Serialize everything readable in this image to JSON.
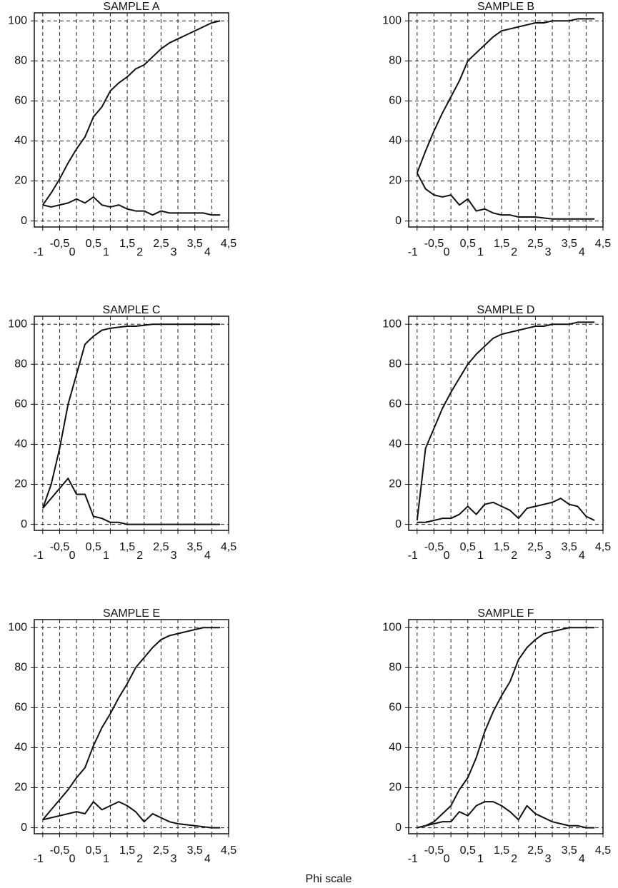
{
  "xlabel": "Phi scale",
  "chart_data": [
    {
      "type": "line",
      "title": "SAMPLE A",
      "x": [
        -1,
        -0.75,
        -0.5,
        -0.25,
        0,
        0.25,
        0.5,
        0.75,
        1,
        1.25,
        1.5,
        1.75,
        2,
        2.25,
        2.5,
        2.75,
        3,
        3.25,
        3.5,
        3.75,
        4,
        4.25
      ],
      "series": [
        {
          "color": "#111",
          "values": [
            8,
            14,
            21,
            29,
            36,
            42,
            52,
            57,
            65,
            69,
            72,
            76,
            78,
            82,
            86,
            89,
            91,
            93,
            95,
            97,
            99,
            100
          ]
        },
        {
          "color": "#111",
          "values": [
            8,
            7,
            8,
            9,
            11,
            9,
            12,
            8,
            7,
            8,
            6,
            5,
            5,
            3,
            5,
            4,
            4,
            4,
            4,
            4,
            3,
            3
          ]
        }
      ],
      "xlim": [
        -1.25,
        4.5
      ],
      "ylim": [
        -3,
        104
      ],
      "xticks": [
        -1,
        {
          "value": -0.5,
          "label": "-0,5"
        },
        0,
        {
          "value": 0.5,
          "label": "0,5"
        },
        1,
        {
          "value": 1.5,
          "label": "1,5"
        },
        2,
        {
          "value": 2.5,
          "label": "2,5"
        },
        3,
        {
          "value": 3.5,
          "label": "3,5"
        },
        4,
        {
          "value": 4.5,
          "label": "4,5"
        }
      ],
      "yticks": [
        0,
        20,
        40,
        60,
        80,
        100
      ],
      "grid": true
    },
    {
      "type": "line",
      "title": "SAMPLE B",
      "x": [
        -1,
        -0.75,
        -0.5,
        -0.25,
        0,
        0.25,
        0.5,
        0.75,
        1,
        1.25,
        1.5,
        1.75,
        2,
        2.25,
        2.5,
        2.75,
        3,
        3.25,
        3.5,
        3.75,
        4,
        4.25
      ],
      "series": [
        {
          "color": "#111",
          "values": [
            24,
            35,
            45,
            54,
            62,
            70,
            80,
            84,
            88,
            92,
            95,
            96,
            97,
            98,
            99,
            99,
            100,
            100,
            100,
            101,
            101,
            101
          ]
        },
        {
          "color": "#111",
          "values": [
            24,
            16,
            13,
            12,
            13,
            8,
            11,
            5,
            6,
            4,
            3,
            3,
            2,
            2,
            2,
            1.5,
            1,
            1,
            1,
            1,
            1,
            1
          ]
        }
      ],
      "xlim": [
        -1.25,
        4.5
      ],
      "ylim": [
        -3,
        104
      ],
      "xticks": [
        -1,
        {
          "value": -0.5,
          "label": "-0,5"
        },
        0,
        {
          "value": 0.5,
          "label": "0,5"
        },
        1,
        {
          "value": 1.5,
          "label": "1,5"
        },
        2,
        {
          "value": 2.5,
          "label": "2,5"
        },
        3,
        {
          "value": 3.5,
          "label": "3,5"
        },
        4,
        {
          "value": 4.5,
          "label": "4,5"
        }
      ],
      "yticks": [
        0,
        20,
        40,
        60,
        80,
        100
      ],
      "grid": true
    },
    {
      "type": "line",
      "title": "SAMPLE C",
      "x": [
        -1,
        -0.75,
        -0.5,
        -0.25,
        0,
        0.25,
        0.5,
        0.75,
        1,
        1.25,
        1.5,
        1.75,
        2,
        2.25,
        2.5,
        2.75,
        3,
        3.25,
        3.5,
        3.75,
        4,
        4.25
      ],
      "series": [
        {
          "color": "#111",
          "values": [
            8,
            20,
            38,
            60,
            75,
            90,
            94,
            97,
            98,
            98.5,
            99,
            99,
            99.5,
            100,
            100,
            100,
            100,
            100,
            100,
            100,
            100,
            100
          ]
        },
        {
          "color": "#111",
          "values": [
            8,
            13,
            18,
            23,
            15,
            15,
            4,
            3,
            1,
            1,
            0,
            0,
            0,
            0,
            0,
            0,
            0,
            0,
            0,
            0,
            0,
            0
          ]
        }
      ],
      "xlim": [
        -1.25,
        4.5
      ],
      "ylim": [
        -3,
        104
      ],
      "xticks": [
        -1,
        {
          "value": -0.5,
          "label": "-0,5"
        },
        0,
        {
          "value": 0.5,
          "label": "0,5"
        },
        1,
        {
          "value": 1.5,
          "label": "1,5"
        },
        2,
        {
          "value": 2.5,
          "label": "2,5"
        },
        3,
        {
          "value": 3.5,
          "label": "3,5"
        },
        4,
        {
          "value": 4.5,
          "label": "4,5"
        }
      ],
      "yticks": [
        0,
        20,
        40,
        60,
        80,
        100
      ],
      "grid": true
    },
    {
      "type": "line",
      "title": "SAMPLE D",
      "x": [
        -1,
        -0.75,
        -0.5,
        -0.25,
        0,
        0.25,
        0.5,
        0.75,
        1,
        1.25,
        1.5,
        1.75,
        2,
        2.25,
        2.5,
        2.75,
        3,
        3.25,
        3.5,
        3.75,
        4,
        4.25
      ],
      "series": [
        {
          "color": "#111",
          "values": [
            2,
            38,
            48,
            58,
            66,
            73,
            80,
            85,
            89,
            93,
            95,
            96,
            97,
            98,
            99,
            99,
            100,
            100,
            100,
            101,
            101,
            101
          ]
        },
        {
          "color": "#111",
          "values": [
            1,
            1,
            2,
            3,
            3,
            5,
            9,
            5,
            10,
            11,
            9,
            7,
            3,
            8,
            9,
            10,
            11,
            13,
            10,
            9,
            4,
            2
          ]
        }
      ],
      "xlim": [
        -1.25,
        4.5
      ],
      "ylim": [
        -3,
        104
      ],
      "xticks": [
        -1,
        {
          "value": -0.5,
          "label": "-0,5"
        },
        0,
        {
          "value": 0.5,
          "label": "0,5"
        },
        1,
        {
          "value": 1.5,
          "label": "1,5"
        },
        2,
        {
          "value": 2.5,
          "label": "2,5"
        },
        3,
        {
          "value": 3.5,
          "label": "3,5"
        },
        4,
        {
          "value": 4.5,
          "label": "4,5"
        }
      ],
      "yticks": [
        0,
        20,
        40,
        60,
        80,
        100
      ],
      "grid": true
    },
    {
      "type": "line",
      "title": "SAMPLE E",
      "x": [
        -1,
        -0.75,
        -0.5,
        -0.25,
        0,
        0.25,
        0.5,
        0.75,
        1,
        1.25,
        1.5,
        1.75,
        2,
        2.25,
        2.5,
        2.75,
        3,
        3.25,
        3.5,
        3.75,
        4,
        4.25
      ],
      "series": [
        {
          "color": "#111",
          "values": [
            4,
            9,
            14,
            19,
            25,
            30,
            41,
            50,
            57,
            65,
            72,
            80,
            85,
            90,
            94,
            96,
            97,
            98,
            99,
            100,
            100,
            100
          ]
        },
        {
          "color": "#111",
          "values": [
            4,
            5,
            6,
            7,
            8,
            7,
            13,
            9,
            11,
            13,
            11,
            8,
            3,
            7,
            5,
            3,
            2,
            1.5,
            1,
            0.5,
            0,
            0
          ]
        }
      ],
      "xlim": [
        -1.25,
        4.5
      ],
      "ylim": [
        -3,
        104
      ],
      "xticks": [
        -1,
        {
          "value": -0.5,
          "label": "-0,5"
        },
        0,
        {
          "value": 0.5,
          "label": "0,5"
        },
        1,
        {
          "value": 1.5,
          "label": "1,5"
        },
        2,
        {
          "value": 2.5,
          "label": "2,5"
        },
        3,
        {
          "value": 3.5,
          "label": "3,5"
        },
        4,
        {
          "value": 4.5,
          "label": "4,5"
        }
      ],
      "yticks": [
        0,
        20,
        40,
        60,
        80,
        100
      ],
      "grid": true
    },
    {
      "type": "line",
      "title": "SAMPLE F",
      "x": [
        -1,
        -0.75,
        -0.5,
        -0.25,
        0,
        0.25,
        0.5,
        0.75,
        1,
        1.25,
        1.5,
        1.75,
        2,
        2.25,
        2.5,
        2.75,
        3,
        3.25,
        3.5,
        3.75,
        4,
        4.25
      ],
      "series": [
        {
          "color": "#111",
          "values": [
            0,
            1,
            3,
            7,
            11,
            19,
            25,
            35,
            48,
            58,
            66,
            73,
            84,
            90,
            94,
            97,
            98,
            99,
            100,
            100,
            100,
            100
          ]
        },
        {
          "color": "#111",
          "values": [
            0,
            1,
            2,
            3,
            3,
            8,
            6,
            11,
            13,
            13,
            11,
            8,
            4,
            11,
            7,
            5,
            3,
            2,
            1,
            1,
            0,
            0
          ]
        }
      ],
      "xlim": [
        -1.25,
        4.5
      ],
      "ylim": [
        -3,
        104
      ],
      "xticks": [
        -1,
        {
          "value": -0.5,
          "label": "-0,5"
        },
        0,
        {
          "value": 0.5,
          "label": "0,5"
        },
        1,
        {
          "value": 1.5,
          "label": "1,5"
        },
        2,
        {
          "value": 2.5,
          "label": "2,5"
        },
        3,
        {
          "value": 3.5,
          "label": "3,5"
        },
        4,
        {
          "value": 4.5,
          "label": "4,5"
        }
      ],
      "yticks": [
        0,
        20,
        40,
        60,
        80,
        100
      ],
      "grid": true
    }
  ]
}
